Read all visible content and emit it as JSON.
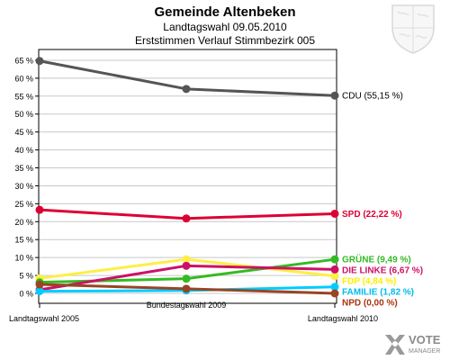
{
  "chart_data": {
    "type": "line",
    "title": "Gemeinde Altenbeken",
    "subtitle": [
      "Landtagswahl 09.05.2010",
      "Erststimmen Verlauf Stimmbezirk  005"
    ],
    "categories": [
      "Landtagswahl 2005",
      "Bundestagswahl 2009",
      "Landtagswahl 2010"
    ],
    "ylim": [
      0,
      68
    ],
    "yticks": [
      0,
      5,
      10,
      15,
      20,
      25,
      30,
      35,
      40,
      45,
      50,
      55,
      60,
      65
    ],
    "ytick_labels": [
      "0 %",
      "5 %",
      "10 %",
      "15 %",
      "20 %",
      "25 %",
      "30 %",
      "35 %",
      "40 %",
      "45 %",
      "50 %",
      "55 %",
      "60 %",
      "65 %"
    ],
    "grid": true,
    "series": [
      {
        "name": "CDU",
        "end_label": "CDU (55,15 %)",
        "color": "#555555",
        "label_color": "#000000",
        "values": [
          64.8,
          57.0,
          55.15
        ]
      },
      {
        "name": "SPD",
        "end_label": "SPD (22,22 %)",
        "color": "#dd0033",
        "label_color": "#dd0033",
        "values": [
          23.3,
          20.9,
          22.22
        ]
      },
      {
        "name": "FDP",
        "end_label": "FDP (4,84 %)",
        "color": "#ffee44",
        "label_color": "#ffee00",
        "values": [
          4.2,
          9.5,
          4.84
        ]
      },
      {
        "name": "GRÜNE",
        "end_label": "GRÜNE (9,49 %)",
        "color": "#33bb22",
        "label_color": "#33bb22",
        "values": [
          3.1,
          4.1,
          9.49
        ]
      },
      {
        "name": "DIE LINKE",
        "end_label": "DIE LINKE (6,67 %)",
        "color": "#cc1166",
        "label_color": "#cc1166",
        "values": [
          1.0,
          7.7,
          6.67
        ]
      },
      {
        "name": "FAMILIE",
        "end_label": "FAMILIE (1,82 %)",
        "color": "#00ccff",
        "label_color": "#00bbee",
        "values": [
          0.6,
          0.8,
          1.82
        ]
      },
      {
        "name": "NPD",
        "end_label": "NPD (0,00 %)",
        "color": "#994422",
        "label_color": "#aa3311",
        "values": [
          2.5,
          1.3,
          0.0
        ]
      }
    ]
  },
  "branding": {
    "logo_line1": "VOTE",
    "logo_line2": "MANAGER",
    "logo_color": "#888888",
    "crest_icon": "coat-of-arms-icon"
  }
}
